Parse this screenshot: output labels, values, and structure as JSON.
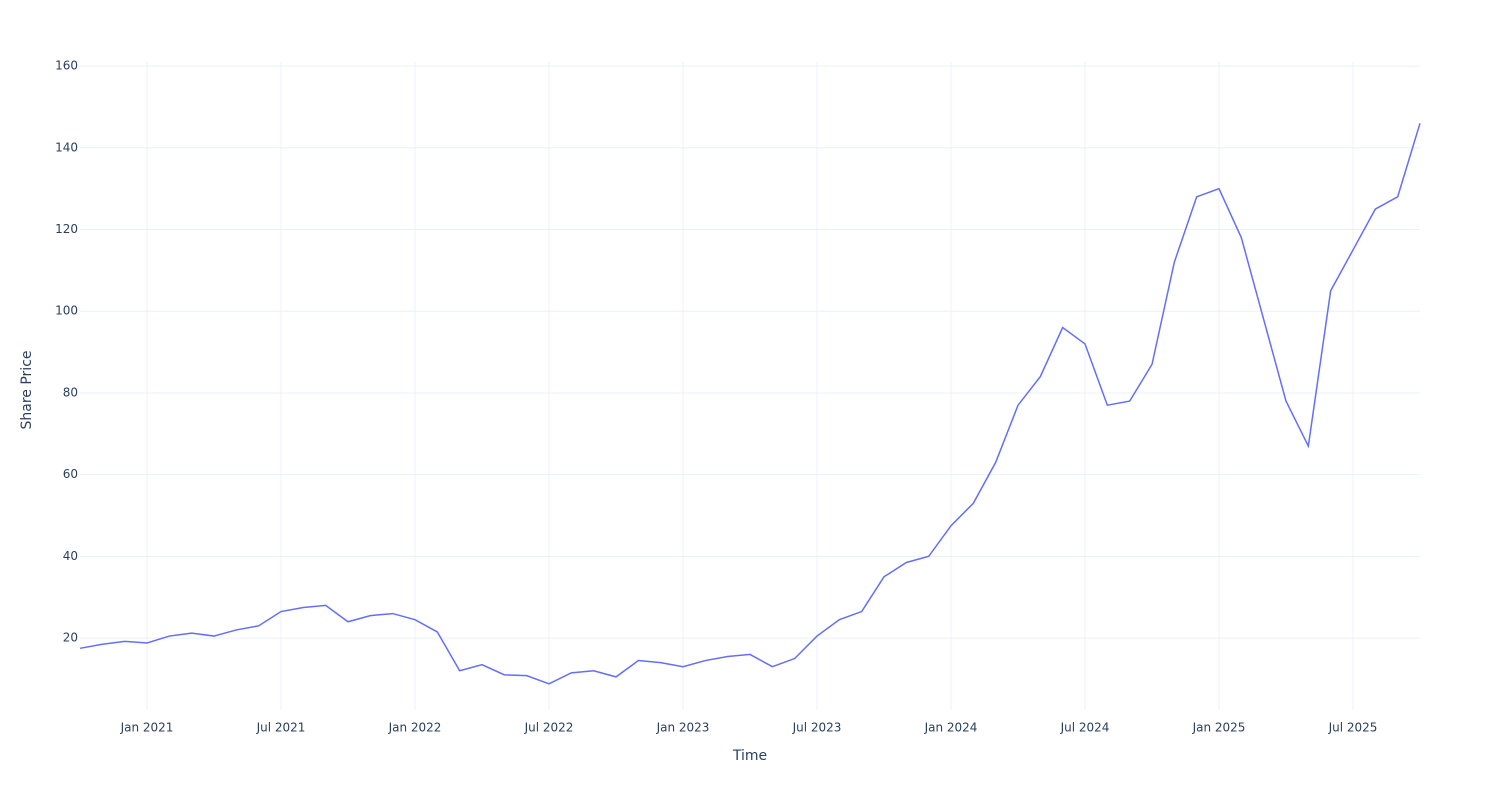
{
  "chart_data": {
    "type": "line",
    "x_label": "Time",
    "y_label": "Share Price",
    "x": [
      "2020-10",
      "2020-11",
      "2020-12",
      "2021-01",
      "2021-02",
      "2021-03",
      "2021-04",
      "2021-05",
      "2021-06",
      "2021-07",
      "2021-08",
      "2021-09",
      "2021-10",
      "2021-11",
      "2021-12",
      "2022-01",
      "2022-02",
      "2022-03",
      "2022-04",
      "2022-05",
      "2022-06",
      "2022-07",
      "2022-08",
      "2022-09",
      "2022-10",
      "2022-11",
      "2022-12",
      "2023-01",
      "2023-02",
      "2023-03",
      "2023-04",
      "2023-05",
      "2023-06",
      "2023-07",
      "2023-08",
      "2023-09",
      "2023-10",
      "2023-11",
      "2023-12",
      "2024-01",
      "2024-02",
      "2024-03",
      "2024-04",
      "2024-05",
      "2024-06",
      "2024-07",
      "2024-08",
      "2024-09",
      "2024-10",
      "2024-11",
      "2024-12",
      "2025-01",
      "2025-02",
      "2025-03",
      "2025-04",
      "2025-05",
      "2025-06",
      "2025-07",
      "2025-08",
      "2025-09",
      "2025-10"
    ],
    "series": [
      {
        "name": "Share Price",
        "color": "#636efa",
        "values": [
          17.5,
          18.5,
          19.2,
          18.8,
          20.5,
          21.2,
          20.5,
          22.0,
          23.0,
          26.5,
          27.5,
          28.0,
          24.0,
          25.5,
          26.0,
          24.5,
          21.5,
          12.0,
          13.5,
          11.0,
          10.8,
          8.8,
          11.5,
          12.0,
          10.5,
          14.5,
          14.0,
          13.0,
          14.5,
          15.5,
          16.0,
          13.0,
          15.0,
          20.5,
          24.5,
          26.5,
          35.0,
          38.5,
          40.0,
          47.5,
          53.0,
          63.0,
          77.0,
          84.0,
          96.0,
          92.0,
          77.0,
          78.0,
          87.0,
          112.0,
          128.0,
          130.0,
          118.0,
          98.0,
          78.0,
          67.0,
          105.0,
          115.0,
          125.0,
          128.0,
          146.0
        ]
      }
    ],
    "xlim": [
      "2020-10",
      "2025-10"
    ],
    "xticks": [
      {
        "value": "2021-01",
        "label": "Jan 2021"
      },
      {
        "value": "2021-07",
        "label": "Jul 2021"
      },
      {
        "value": "2022-01",
        "label": "Jan 2022"
      },
      {
        "value": "2022-07",
        "label": "Jul 2022"
      },
      {
        "value": "2023-01",
        "label": "Jan 2023"
      },
      {
        "value": "2023-07",
        "label": "Jul 2023"
      },
      {
        "value": "2024-01",
        "label": "Jan 2024"
      },
      {
        "value": "2024-07",
        "label": "Jul 2024"
      },
      {
        "value": "2025-01",
        "label": "Jan 2025"
      },
      {
        "value": "2025-07",
        "label": "Jul 2025"
      }
    ],
    "ylim": [
      2.4,
      161.0
    ],
    "yticks": [
      20,
      40,
      60,
      80,
      100,
      120,
      140,
      160
    ],
    "grid": true
  }
}
